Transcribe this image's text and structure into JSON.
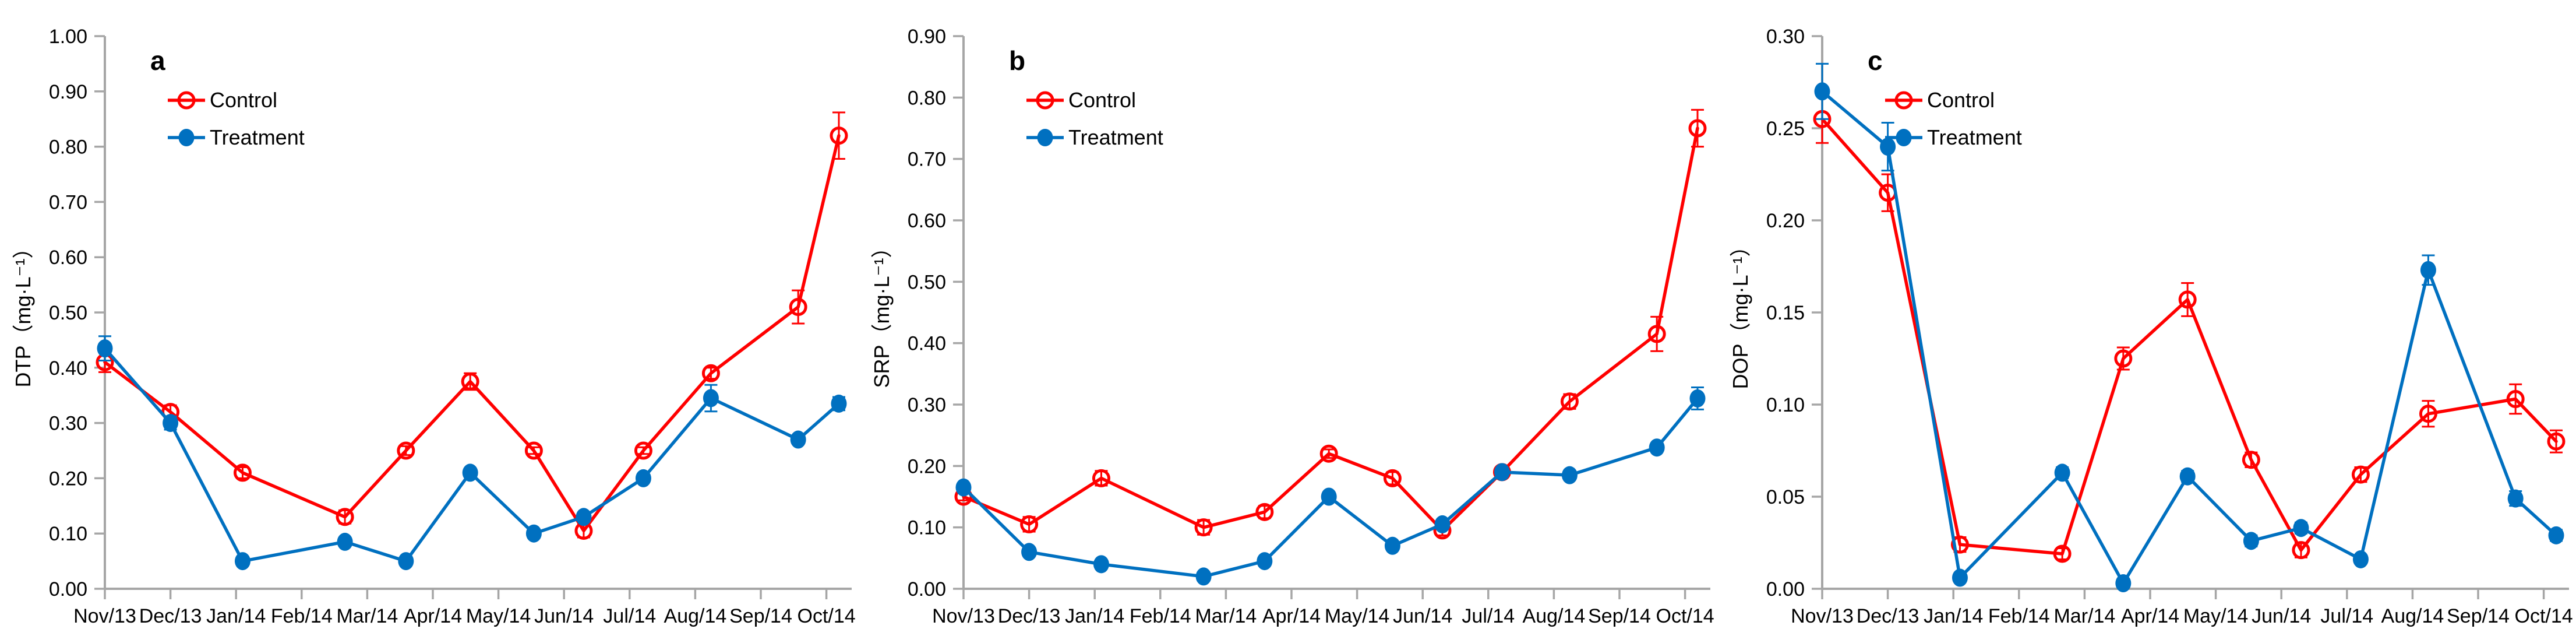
{
  "figure": {
    "background": "#FFFFFF",
    "axis_color": "#A6A6A6",
    "text_color": "#000000",
    "legend_labels": [
      "Control",
      "Treatment"
    ],
    "series_colors": {
      "control": "#FF0000",
      "treatment": "#0070C0"
    }
  },
  "chart_data": [
    {
      "type": "line",
      "panel_label": "a",
      "ylabel": "DTP（mg·L⁻¹）",
      "xlabel": "",
      "ylim": [
        0,
        1.0
      ],
      "ytick_step": 0.1,
      "ytick_decimals": 2,
      "grid": false,
      "legend_position": "upper-left-inside",
      "categories": [
        "Nov/13",
        "Dec/13",
        "Jan/14",
        "Feb/14",
        "Mar/14",
        "Apr/14",
        "May/14",
        "Jun/14",
        "Jul/14",
        "Aug/14",
        "Sep/14",
        "Oct/14"
      ],
      "x_offsets": [
        0,
        1,
        2.1,
        3.66,
        4.59,
        5.57,
        6.54,
        7.3,
        8.21,
        9.24,
        10.57,
        11.19
      ],
      "series": [
        {
          "name": "Control",
          "color": "#FF0000",
          "marker": "open-circle",
          "values": [
            0.41,
            0.32,
            0.21,
            0.13,
            0.25,
            0.375,
            0.25,
            0.105,
            0.25,
            0.39,
            0.51,
            0.82
          ],
          "errors": [
            0.018,
            0.012,
            0.01,
            0.012,
            0.008,
            0.015,
            0.006,
            0.012,
            0.006,
            0.01,
            0.03,
            0.042
          ]
        },
        {
          "name": "Treatment",
          "color": "#0070C0",
          "marker": "filled-circle",
          "values": [
            0.435,
            0.3,
            0.05,
            0.085,
            0.05,
            0.21,
            0.1,
            0.13,
            0.2,
            0.345,
            0.27,
            0.335
          ],
          "errors": [
            0.022,
            0.012,
            0.004,
            0.005,
            0.004,
            0.006,
            0.004,
            0.005,
            0.004,
            0.024,
            0.006,
            0.012
          ]
        }
      ]
    },
    {
      "type": "line",
      "panel_label": "b",
      "ylabel": "SRP（mg·L⁻¹）",
      "xlabel": "",
      "ylim": [
        0,
        0.9
      ],
      "ytick_step": 0.1,
      "ytick_decimals": 2,
      "grid": false,
      "legend_position": "upper-left-inside",
      "categories": [
        "Nov/13",
        "Dec/13",
        "Jan/14",
        "Feb/14",
        "Mar/14",
        "Apr/14",
        "May/14",
        "Jun/14",
        "Jul/14",
        "Aug/14",
        "Sep/14",
        "Oct/14"
      ],
      "x_offsets": [
        0,
        1,
        2.1,
        3.66,
        4.59,
        5.57,
        6.54,
        7.3,
        8.21,
        9.24,
        10.57,
        11.19
      ],
      "series": [
        {
          "name": "Control",
          "color": "#FF0000",
          "marker": "open-circle",
          "values": [
            0.15,
            0.105,
            0.18,
            0.1,
            0.125,
            0.22,
            0.18,
            0.095,
            0.19,
            0.305,
            0.415,
            0.75
          ],
          "errors": [
            0.006,
            0.012,
            0.012,
            0.012,
            0.01,
            0.007,
            0.01,
            0.008,
            0.005,
            0.012,
            0.028,
            0.03
          ]
        },
        {
          "name": "Treatment",
          "color": "#0070C0",
          "marker": "filled-circle",
          "values": [
            0.165,
            0.06,
            0.04,
            0.02,
            0.045,
            0.15,
            0.07,
            0.105,
            0.19,
            0.185,
            0.23,
            0.31
          ],
          "errors": [
            0.005,
            0.004,
            0.004,
            0.003,
            0.004,
            0.006,
            0.004,
            0.004,
            0.004,
            0.005,
            0.006,
            0.018
          ]
        }
      ]
    },
    {
      "type": "line",
      "panel_label": "c",
      "ylabel": "DOP（mg·L⁻¹）",
      "xlabel": "",
      "ylim": [
        0,
        0.3
      ],
      "ytick_step": 0.05,
      "ytick_decimals": 2,
      "grid": false,
      "legend_position": "upper-left-inside",
      "categories": [
        "Nov/13",
        "Dec/13",
        "Jan/14",
        "Feb/14",
        "Mar/14",
        "Apr/14",
        "May/14",
        "Jun/14",
        "Jul/14",
        "Aug/14",
        "Sep/14",
        "Oct/14"
      ],
      "x_offsets": [
        0,
        1,
        2.1,
        3.66,
        4.59,
        5.57,
        6.54,
        7.3,
        8.21,
        9.24,
        10.57,
        11.19
      ],
      "series": [
        {
          "name": "Control",
          "color": "#FF0000",
          "marker": "open-circle",
          "values": [
            0.255,
            0.215,
            0.024,
            0.019,
            0.125,
            0.157,
            0.07,
            0.021,
            0.062,
            0.095,
            0.103,
            0.08
          ],
          "errors": [
            0.013,
            0.01,
            0.004,
            0.003,
            0.006,
            0.009,
            0.004,
            0.004,
            0.004,
            0.007,
            0.008,
            0.006
          ]
        },
        {
          "name": "Treatment",
          "color": "#0070C0",
          "marker": "filled-circle",
          "values": [
            0.27,
            0.24,
            0.006,
            0.063,
            0.003,
            0.061,
            0.026,
            0.033,
            0.016,
            0.173,
            0.049,
            0.029
          ],
          "errors": [
            0.015,
            0.013,
            0.002,
            0.003,
            0.002,
            0.003,
            0.003,
            0.003,
            0.002,
            0.008,
            0.004,
            0.003
          ]
        }
      ]
    }
  ]
}
